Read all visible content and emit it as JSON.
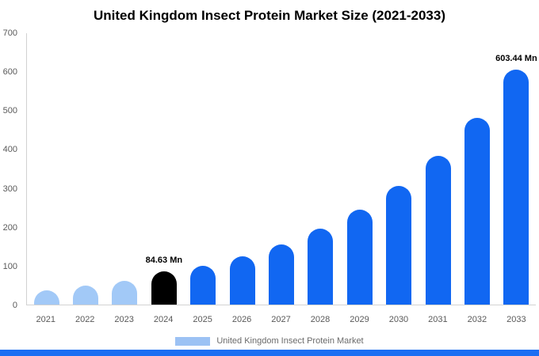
{
  "title": "United Kingdom Insect Protein Market Size (2021-2033)",
  "legend": {
    "label": "United Kingdom Insect Protein Market",
    "swatch_color": "#9cc2f4"
  },
  "colors": {
    "historical": "#a2c9f7",
    "current": "#000000",
    "forecast": "#1167f2",
    "footer": "#1b6ef2",
    "axis": "#d2d2d2",
    "tick_text": "#595959"
  },
  "chart_data": {
    "type": "bar",
    "title": "United Kingdom Insect Protein Market Size (2021-2033)",
    "xlabel": "",
    "ylabel": "",
    "categories": [
      "2021",
      "2022",
      "2023",
      "2024",
      "2025",
      "2026",
      "2027",
      "2028",
      "2029",
      "2030",
      "2031",
      "2032",
      "2033"
    ],
    "values": [
      37,
      48,
      62,
      84.63,
      100,
      124,
      155,
      196,
      244,
      306,
      382,
      480,
      603.44
    ],
    "bar_colors": [
      "#a2c9f7",
      "#a2c9f7",
      "#a2c9f7",
      "#000000",
      "#1167f2",
      "#1167f2",
      "#1167f2",
      "#1167f2",
      "#1167f2",
      "#1167f2",
      "#1167f2",
      "#1167f2",
      "#1167f2"
    ],
    "annotations": [
      {
        "category": "2024",
        "label": "84.63 Mn"
      },
      {
        "category": "2033",
        "label": "603.44 Mn"
      }
    ],
    "ylim": [
      0,
      700
    ],
    "yticks": [
      0,
      100,
      200,
      300,
      400,
      500,
      600,
      700
    ],
    "grid": false,
    "legend_position": "bottom"
  }
}
